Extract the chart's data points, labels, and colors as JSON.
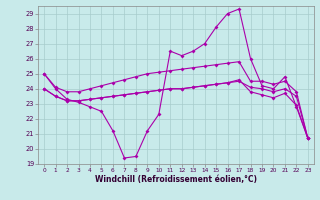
{
  "xlabel": "Windchill (Refroidissement éolien,°C)",
  "background_color": "#c8eaea",
  "grid_color": "#a8cccc",
  "line_color": "#aa00aa",
  "ylim": [
    19,
    29.5
  ],
  "xlim": [
    -0.5,
    23.5
  ],
  "yticks": [
    19,
    20,
    21,
    22,
    23,
    24,
    25,
    26,
    27,
    28,
    29
  ],
  "xticks": [
    0,
    1,
    2,
    3,
    4,
    5,
    6,
    7,
    8,
    9,
    10,
    11,
    12,
    13,
    14,
    15,
    16,
    17,
    18,
    19,
    20,
    21,
    22,
    23
  ],
  "lines": [
    [
      25.0,
      24.0,
      23.3,
      23.1,
      22.8,
      22.5,
      21.2,
      19.4,
      19.5,
      21.2,
      22.3,
      26.5,
      26.2,
      26.5,
      27.0,
      28.1,
      29.0,
      29.3,
      26.0,
      24.2,
      24.0,
      24.8,
      22.8,
      20.7
    ],
    [
      25.0,
      24.1,
      23.8,
      23.8,
      24.0,
      24.2,
      24.4,
      24.6,
      24.8,
      25.0,
      25.1,
      25.2,
      25.3,
      25.4,
      25.5,
      25.6,
      25.7,
      25.8,
      24.5,
      24.5,
      24.3,
      24.5,
      23.8,
      20.7
    ],
    [
      24.0,
      23.5,
      23.2,
      23.2,
      23.3,
      23.4,
      23.5,
      23.6,
      23.7,
      23.8,
      23.9,
      24.0,
      24.0,
      24.1,
      24.2,
      24.3,
      24.4,
      24.5,
      24.1,
      24.0,
      23.8,
      24.0,
      23.5,
      20.7
    ],
    [
      24.0,
      23.5,
      23.2,
      23.2,
      23.3,
      23.4,
      23.5,
      23.6,
      23.7,
      23.8,
      23.9,
      24.0,
      24.0,
      24.1,
      24.2,
      24.3,
      24.4,
      24.6,
      23.8,
      23.6,
      23.4,
      23.7,
      22.9,
      20.7
    ]
  ]
}
